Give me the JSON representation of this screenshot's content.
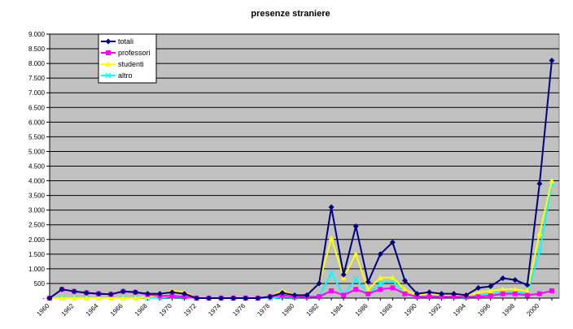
{
  "chart_data": {
    "type": "line",
    "title": "presenze straniere",
    "xlabel": "",
    "ylabel": "",
    "ylim": [
      0,
      9000
    ],
    "yticks": [
      0,
      500,
      1000,
      1500,
      2000,
      2500,
      3000,
      3500,
      4000,
      4500,
      5000,
      5500,
      6000,
      6500,
      7000,
      7500,
      8000,
      8500,
      9000
    ],
    "ytick_labels": [
      "-",
      "500",
      "1.000",
      "1.500",
      "2.000",
      "2.500",
      "3.000",
      "3.500",
      "4.000",
      "4.500",
      "5.000",
      "5.500",
      "6.000",
      "6.500",
      "7.000",
      "7.500",
      "8.000",
      "8.500",
      "9.000"
    ],
    "xtick_labels": [
      "1960",
      "1962",
      "1964",
      "1966",
      "1968",
      "1970",
      "1972",
      "1974",
      "1976",
      "1978",
      "1980",
      "1982",
      "1984",
      "1986",
      "1988",
      "1990",
      "1992",
      "1994",
      "1996",
      "1998",
      "2000"
    ],
    "x": [
      1960,
      1961,
      1962,
      1963,
      1964,
      1965,
      1966,
      1967,
      1968,
      1969,
      1970,
      1971,
      1972,
      1973,
      1974,
      1975,
      1976,
      1977,
      1978,
      1979,
      1980,
      1981,
      1982,
      1983,
      1984,
      1985,
      1986,
      1987,
      1988,
      1989,
      1990,
      1991,
      1992,
      1993,
      1994,
      1995,
      1996,
      1997,
      1998,
      1999,
      2000,
      2001
    ],
    "grid": true,
    "legend": "top-left",
    "background": "#c0c0c0",
    "series": [
      {
        "name": "totali",
        "color": "#000080",
        "marker": "diamond",
        "values": [
          0,
          300,
          230,
          180,
          150,
          130,
          230,
          200,
          150,
          150,
          200,
          150,
          0,
          0,
          0,
          0,
          0,
          0,
          50,
          180,
          100,
          100,
          500,
          3100,
          800,
          2450,
          550,
          1500,
          1900,
          600,
          150,
          200,
          150,
          150,
          100,
          350,
          400,
          680,
          620,
          450,
          3900,
          8100
        ]
      },
      {
        "name": "professori",
        "color": "#ff00ff",
        "marker": "square",
        "values": [
          0,
          300,
          230,
          180,
          150,
          130,
          230,
          200,
          120,
          80,
          80,
          50,
          0,
          0,
          0,
          0,
          0,
          0,
          50,
          100,
          50,
          50,
          50,
          250,
          100,
          300,
          150,
          300,
          350,
          150,
          50,
          50,
          50,
          50,
          50,
          50,
          80,
          150,
          150,
          100,
          150,
          250
        ]
      },
      {
        "name": "studenti",
        "color": "#ffff00",
        "marker": "triangle",
        "values": [
          0,
          0,
          0,
          0,
          0,
          0,
          0,
          0,
          50,
          100,
          250,
          200,
          0,
          0,
          0,
          0,
          0,
          0,
          50,
          250,
          100,
          100,
          500,
          2050,
          700,
          1500,
          300,
          700,
          700,
          300,
          100,
          150,
          100,
          100,
          50,
          200,
          250,
          300,
          300,
          250,
          2200,
          4000
        ]
      },
      {
        "name": "altro",
        "color": "#00ffff",
        "marker": "x",
        "values": [
          0,
          0,
          0,
          0,
          0,
          0,
          0,
          0,
          0,
          20,
          50,
          30,
          0,
          0,
          0,
          0,
          0,
          0,
          0,
          50,
          30,
          50,
          50,
          850,
          100,
          650,
          150,
          500,
          600,
          150,
          50,
          100,
          50,
          50,
          30,
          100,
          150,
          200,
          200,
          150,
          1600,
          3900
        ]
      }
    ]
  }
}
